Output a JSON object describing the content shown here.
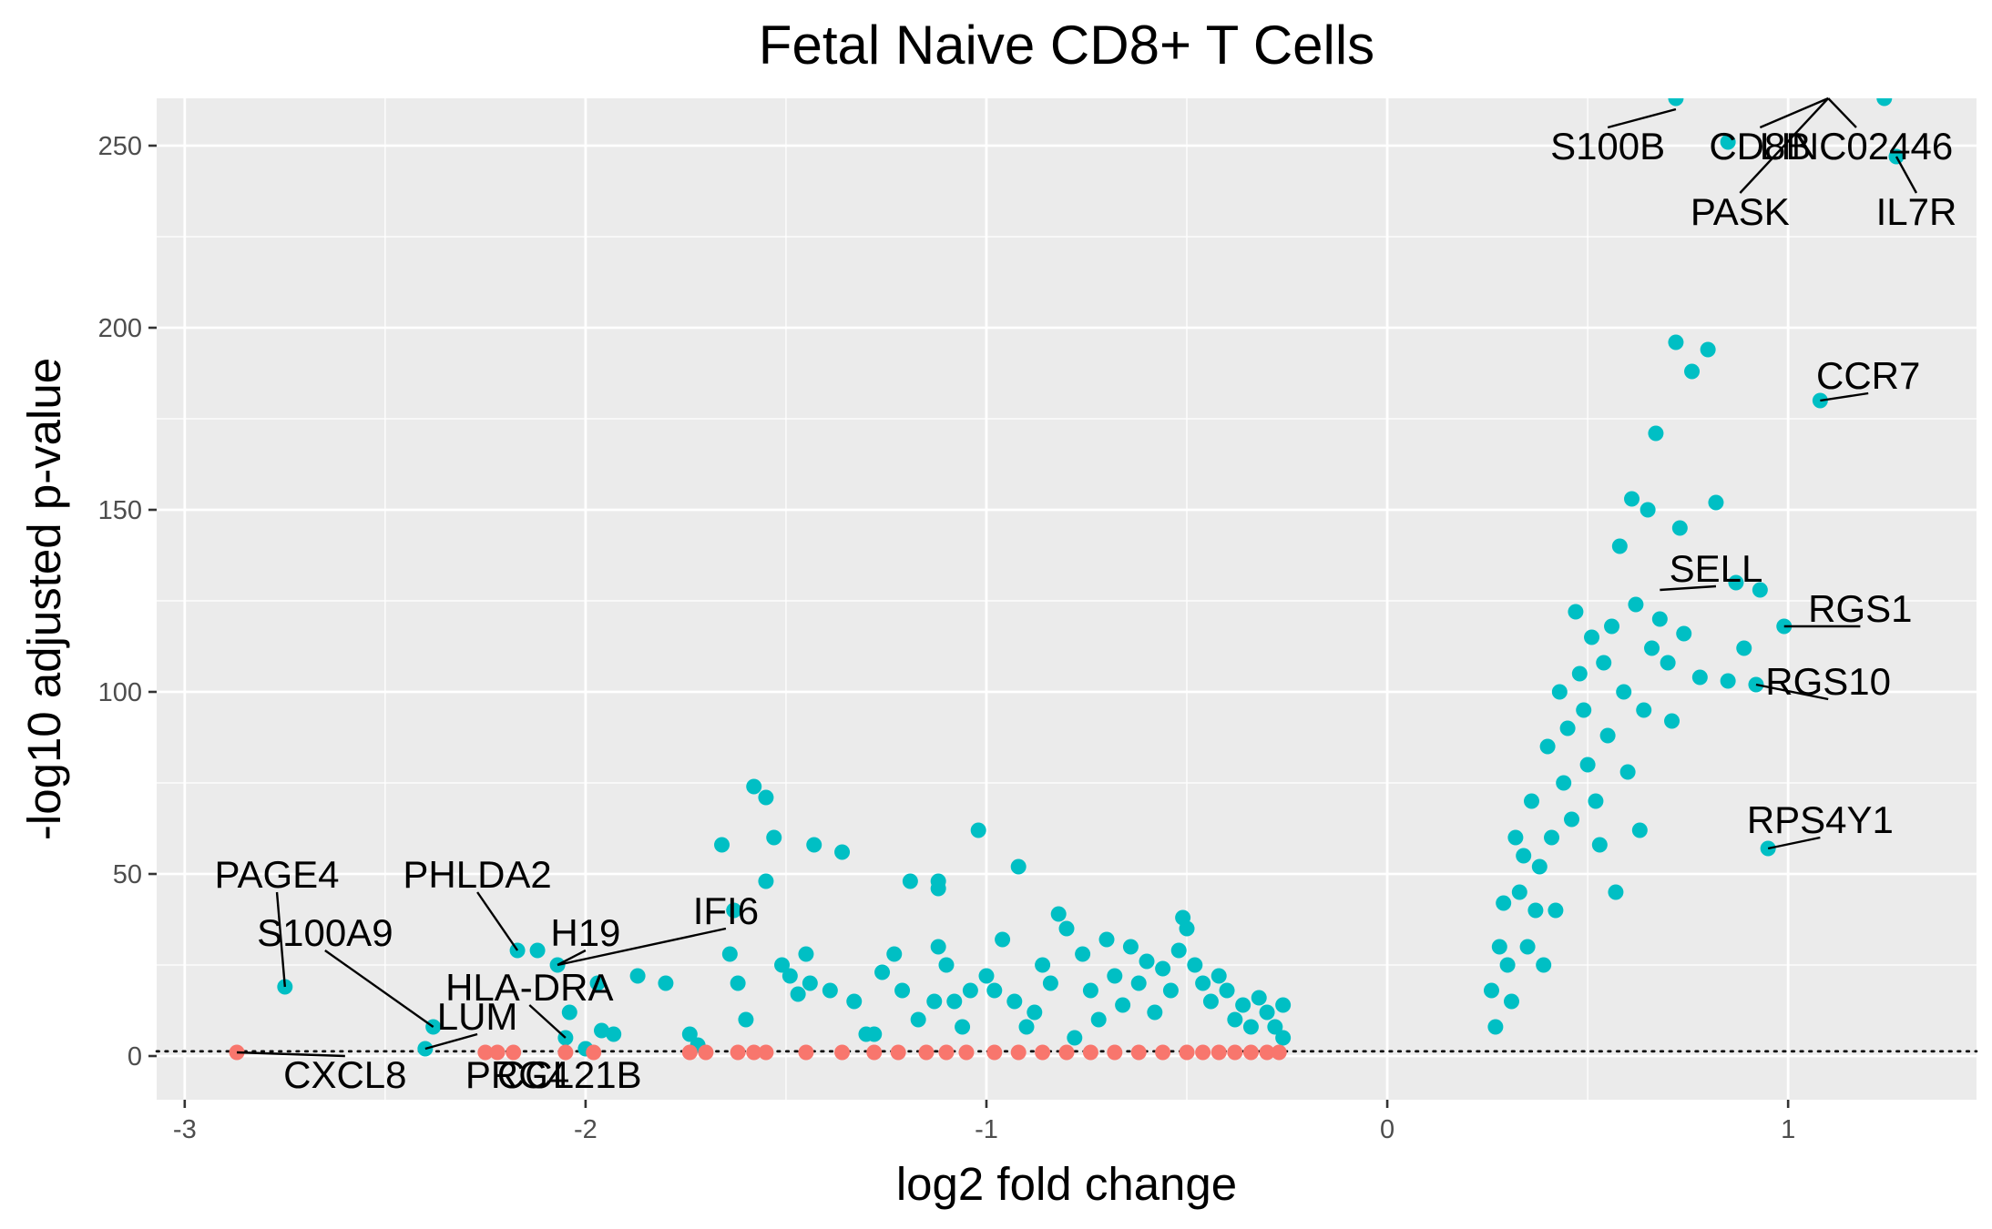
{
  "chart_data": {
    "type": "scatter",
    "title": "Fetal Naive CD8+ T Cells",
    "xlabel": "log2 fold change",
    "ylabel": "-log10 adjusted p-value",
    "xlim": [
      -3.07,
      1.47
    ],
    "ylim": [
      -12,
      263
    ],
    "x_ticks": [
      -3,
      -2,
      -1,
      0,
      1
    ],
    "x_tick_labels": [
      "-3",
      "-2",
      "-1",
      "0",
      "1"
    ],
    "y_ticks": [
      0,
      50,
      100,
      150,
      200,
      250
    ],
    "y_tick_labels": [
      "0",
      "50",
      "100",
      "150",
      "200",
      "250"
    ],
    "grid": true,
    "threshold_line": {
      "y": 1.3,
      "style": "dotted"
    },
    "colors": {
      "significant": "#00bfc4",
      "not_significant": "#f8766d",
      "panel_background": "#ebebeb",
      "grid": "#ffffff",
      "label_text": "#000000"
    },
    "series": [
      {
        "category": "significant",
        "points": [
          [
            -2.75,
            19
          ],
          [
            -2.38,
            8
          ],
          [
            -2.4,
            2
          ],
          [
            -2.17,
            29
          ],
          [
            -2.12,
            29
          ],
          [
            -2.07,
            25
          ],
          [
            -2.05,
            5
          ],
          [
            -2.04,
            12
          ],
          [
            -2.0,
            2
          ],
          [
            -1.97,
            20
          ],
          [
            -1.96,
            7
          ],
          [
            -1.93,
            6
          ],
          [
            -1.87,
            22
          ],
          [
            -1.8,
            20
          ],
          [
            -1.74,
            6
          ],
          [
            -1.72,
            3
          ],
          [
            -1.66,
            58
          ],
          [
            -1.64,
            28
          ],
          [
            -1.63,
            40
          ],
          [
            -1.62,
            20
          ],
          [
            -1.6,
            10
          ],
          [
            -1.58,
            74
          ],
          [
            -1.55,
            71
          ],
          [
            -1.55,
            48
          ],
          [
            -1.53,
            60
          ],
          [
            -1.51,
            25
          ],
          [
            -1.49,
            22
          ],
          [
            -1.47,
            17
          ],
          [
            -1.45,
            28
          ],
          [
            -1.44,
            20
          ],
          [
            -1.43,
            58
          ],
          [
            -1.39,
            18
          ],
          [
            -1.36,
            56
          ],
          [
            -1.33,
            15
          ],
          [
            -1.3,
            6
          ],
          [
            -1.28,
            6
          ],
          [
            -1.26,
            23
          ],
          [
            -1.23,
            28
          ],
          [
            -1.21,
            18
          ],
          [
            -1.19,
            48
          ],
          [
            -1.17,
            10
          ],
          [
            -1.13,
            15
          ],
          [
            -1.12,
            48
          ],
          [
            -1.12,
            30
          ],
          [
            -1.12,
            46
          ],
          [
            -1.1,
            25
          ],
          [
            -1.08,
            15
          ],
          [
            -1.06,
            8
          ],
          [
            -1.04,
            18
          ],
          [
            -1.02,
            62
          ],
          [
            -1.0,
            22
          ],
          [
            -0.98,
            18
          ],
          [
            -0.96,
            32
          ],
          [
            -0.93,
            15
          ],
          [
            -0.92,
            52
          ],
          [
            -0.9,
            8
          ],
          [
            -0.88,
            12
          ],
          [
            -0.86,
            25
          ],
          [
            -0.84,
            20
          ],
          [
            -0.82,
            39
          ],
          [
            -0.8,
            35
          ],
          [
            -0.78,
            5
          ],
          [
            -0.76,
            28
          ],
          [
            -0.74,
            18
          ],
          [
            -0.72,
            10
          ],
          [
            -0.7,
            32
          ],
          [
            -0.68,
            22
          ],
          [
            -0.66,
            14
          ],
          [
            -0.64,
            30
          ],
          [
            -0.62,
            20
          ],
          [
            -0.6,
            26
          ],
          [
            -0.58,
            12
          ],
          [
            -0.56,
            24
          ],
          [
            -0.54,
            18
          ],
          [
            -0.52,
            29
          ],
          [
            -0.51,
            38
          ],
          [
            -0.5,
            35
          ],
          [
            -0.48,
            25
          ],
          [
            -0.46,
            20
          ],
          [
            -0.44,
            15
          ],
          [
            -0.42,
            22
          ],
          [
            -0.4,
            18
          ],
          [
            -0.38,
            10
          ],
          [
            -0.36,
            14
          ],
          [
            -0.34,
            8
          ],
          [
            -0.32,
            16
          ],
          [
            -0.3,
            12
          ],
          [
            -0.28,
            8
          ],
          [
            -0.26,
            5
          ],
          [
            -0.26,
            14
          ],
          [
            0.26,
            18
          ],
          [
            0.27,
            8
          ],
          [
            0.28,
            30
          ],
          [
            0.29,
            42
          ],
          [
            0.3,
            25
          ],
          [
            0.31,
            15
          ],
          [
            0.32,
            60
          ],
          [
            0.33,
            45
          ],
          [
            0.34,
            55
          ],
          [
            0.35,
            30
          ],
          [
            0.36,
            70
          ],
          [
            0.37,
            40
          ],
          [
            0.38,
            52
          ],
          [
            0.39,
            25
          ],
          [
            0.4,
            85
          ],
          [
            0.41,
            60
          ],
          [
            0.42,
            40
          ],
          [
            0.43,
            100
          ],
          [
            0.44,
            75
          ],
          [
            0.45,
            90
          ],
          [
            0.46,
            65
          ],
          [
            0.47,
            122
          ],
          [
            0.48,
            105
          ],
          [
            0.49,
            95
          ],
          [
            0.5,
            80
          ],
          [
            0.51,
            115
          ],
          [
            0.52,
            70
          ],
          [
            0.53,
            58
          ],
          [
            0.54,
            108
          ],
          [
            0.55,
            88
          ],
          [
            0.56,
            118
          ],
          [
            0.57,
            45
          ],
          [
            0.58,
            140
          ],
          [
            0.59,
            100
          ],
          [
            0.6,
            78
          ],
          [
            0.61,
            153
          ],
          [
            0.62,
            124
          ],
          [
            0.63,
            62
          ],
          [
            0.64,
            95
          ],
          [
            0.65,
            150
          ],
          [
            0.66,
            112
          ],
          [
            0.67,
            171
          ],
          [
            0.68,
            120
          ],
          [
            0.7,
            108
          ],
          [
            0.71,
            92
          ],
          [
            0.72,
            196
          ],
          [
            0.73,
            145
          ],
          [
            0.74,
            116
          ],
          [
            0.76,
            188
          ],
          [
            0.78,
            104
          ],
          [
            0.8,
            194
          ],
          [
            0.82,
            152
          ],
          [
            0.85,
            103
          ],
          [
            0.87,
            130
          ],
          [
            0.89,
            112
          ],
          [
            0.92,
            102
          ],
          [
            0.93,
            128
          ],
          [
            0.99,
            118
          ],
          [
            1.08,
            180
          ],
          [
            0.95,
            57
          ],
          [
            0.72,
            263
          ],
          [
            0.85,
            251
          ],
          [
            1.24,
            263
          ],
          [
            1.27,
            247
          ]
        ]
      },
      {
        "category": "not_significant",
        "points": [
          [
            -2.87,
            1
          ],
          [
            -2.25,
            1
          ],
          [
            -2.22,
            1
          ],
          [
            -2.18,
            1
          ],
          [
            -2.05,
            1
          ],
          [
            -1.98,
            1
          ],
          [
            -1.74,
            1
          ],
          [
            -1.7,
            1
          ],
          [
            -1.62,
            1
          ],
          [
            -1.58,
            1
          ],
          [
            -1.55,
            1
          ],
          [
            -1.45,
            1
          ],
          [
            -1.36,
            1
          ],
          [
            -1.28,
            1
          ],
          [
            -1.22,
            1
          ],
          [
            -1.15,
            1
          ],
          [
            -1.1,
            1
          ],
          [
            -1.05,
            1
          ],
          [
            -0.98,
            1
          ],
          [
            -0.92,
            1
          ],
          [
            -0.86,
            1
          ],
          [
            -0.8,
            1
          ],
          [
            -0.74,
            1
          ],
          [
            -0.68,
            1
          ],
          [
            -0.62,
            1
          ],
          [
            -0.56,
            1
          ],
          [
            -0.5,
            1
          ],
          [
            -0.46,
            1
          ],
          [
            -0.42,
            1
          ],
          [
            -0.38,
            1
          ],
          [
            -0.34,
            1
          ],
          [
            -0.3,
            1
          ],
          [
            -0.27,
            1
          ]
        ]
      }
    ],
    "labels": [
      {
        "text": "PAGE4",
        "x": -2.75,
        "y": 19,
        "tx": -2.77,
        "ty": 50
      },
      {
        "text": "PHLDA2",
        "x": -2.17,
        "y": 29,
        "tx": -2.27,
        "ty": 50
      },
      {
        "text": "IFI6",
        "x": -2.07,
        "y": 25,
        "tx": -1.65,
        "ty": 40
      },
      {
        "text": "H19",
        "x": -2.07,
        "y": 25,
        "tx": -2.0,
        "ty": 34
      },
      {
        "text": "S100A9",
        "x": -2.38,
        "y": 8,
        "tx": -2.65,
        "ty": 34
      },
      {
        "text": "HLA-DRA",
        "x": -2.05,
        "y": 5,
        "tx": -2.14,
        "ty": 19
      },
      {
        "text": "LUM",
        "x": -2.4,
        "y": 2,
        "tx": -2.27,
        "ty": 11
      },
      {
        "text": "CXCL8",
        "x": -2.87,
        "y": 1,
        "tx": -2.6,
        "ty": -5
      },
      {
        "text": "PRG4",
        "x": -2.22,
        "y": 1,
        "tx": -2.17,
        "ty": -5
      },
      {
        "text": "CCL21B",
        "x": -1.98,
        "y": 1,
        "tx": -2.04,
        "ty": -5
      },
      {
        "text": "CCR7",
        "x": 1.08,
        "y": 180,
        "tx": 1.2,
        "ty": 187
      },
      {
        "text": "SELL",
        "x": 0.68,
        "y": 128,
        "tx": 0.82,
        "ty": 134
      },
      {
        "text": "RGS1",
        "x": 0.99,
        "y": 118,
        "tx": 1.18,
        "ty": 123
      },
      {
        "text": "RGS10",
        "x": 0.92,
        "y": 102,
        "tx": 1.1,
        "ty": 103
      },
      {
        "text": "RPS4Y1",
        "x": 0.95,
        "y": 57,
        "tx": 1.08,
        "ty": 65
      },
      {
        "text": "S100B",
        "x": 0.72,
        "y": 260,
        "tx": 0.55,
        "ty": 250
      },
      {
        "text": "CD8B",
        "x": 1.1,
        "y": 263,
        "tx": 0.93,
        "ty": 250
      },
      {
        "text": "LINC02446",
        "x": 1.1,
        "y": 263,
        "tx": 1.17,
        "ty": 250
      },
      {
        "text": "PASK",
        "x": 1.1,
        "y": 263,
        "tx": 0.88,
        "ty": 232
      },
      {
        "text": "IL7R",
        "x": 1.27,
        "y": 247,
        "tx": 1.32,
        "ty": 232
      }
    ]
  }
}
